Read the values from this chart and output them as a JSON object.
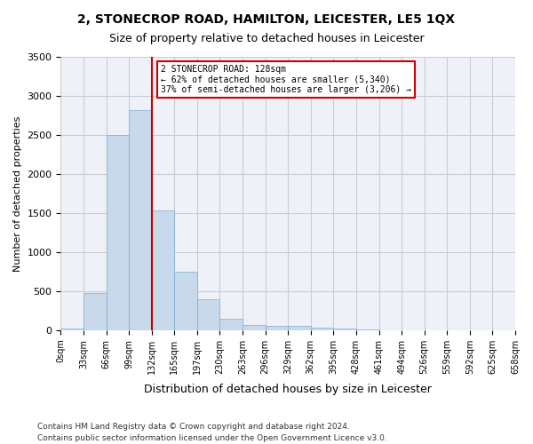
{
  "title": "2, STONECROP ROAD, HAMILTON, LEICESTER, LE5 1QX",
  "subtitle": "Size of property relative to detached houses in Leicester",
  "xlabel": "Distribution of detached houses by size in Leicester",
  "ylabel": "Number of detached properties",
  "footnote1": "Contains HM Land Registry data © Crown copyright and database right 2024.",
  "footnote2": "Contains public sector information licensed under the Open Government Licence v3.0.",
  "bar_color": "#c9d9ec",
  "bar_edge_color": "#7aaed0",
  "grid_color": "#cccccc",
  "background_color": "#eef2f8",
  "property_line_color": "#cc0000",
  "annotation_box_color": "#cc0000",
  "bin_labels": [
    "0sqm",
    "33sqm",
    "66sqm",
    "99sqm",
    "132sqm",
    "165sqm",
    "197sqm",
    "230sqm",
    "263sqm",
    "296sqm",
    "329sqm",
    "362sqm",
    "395sqm",
    "428sqm",
    "461sqm",
    "494sqm",
    "526sqm",
    "559sqm",
    "592sqm",
    "625sqm",
    "658sqm"
  ],
  "bar_heights": [
    20,
    470,
    2500,
    2820,
    1530,
    750,
    390,
    140,
    70,
    55,
    55,
    30,
    15,
    5,
    2,
    1,
    0,
    0,
    0,
    0
  ],
  "property_size": 128,
  "property_bin_index": 3,
  "property_line_x": 4,
  "annotation_text": "2 STONECROP ROAD: 128sqm\n← 62% of detached houses are smaller (5,340)\n37% of semi-detached houses are larger (3,206) →",
  "ylim": [
    0,
    3500
  ],
  "yticks": [
    0,
    500,
    1000,
    1500,
    2000,
    2500,
    3000,
    3500
  ]
}
